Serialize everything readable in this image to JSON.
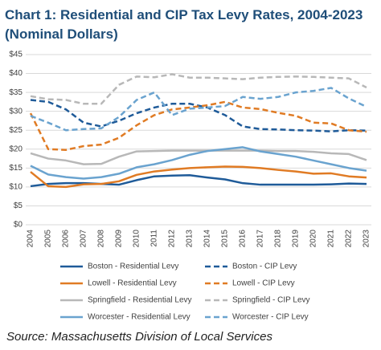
{
  "chart_data": {
    "type": "line",
    "title": "Chart 1: Residential and CIP Tax Levy Rates, 2004-2023",
    "subtitle": "(Nominal Dollars)",
    "source": "Source: Massachusetts Division of Local Services",
    "categories": [
      "2004",
      "2005",
      "2006",
      "2007",
      "2008",
      "2009",
      "2010",
      "2011",
      "2012",
      "2013",
      "2014",
      "2015",
      "2016",
      "2017",
      "2018",
      "2019",
      "2020",
      "2021",
      "2022",
      "2023"
    ],
    "ylim": [
      0,
      45
    ],
    "yticks": [
      {
        "value": 0,
        "label": "$0"
      },
      {
        "value": 5,
        "label": "$5"
      },
      {
        "value": 10,
        "label": "$10"
      },
      {
        "value": 15,
        "label": "$15"
      },
      {
        "value": 20,
        "label": "$20"
      },
      {
        "value": 25,
        "label": "$25"
      },
      {
        "value": 30,
        "label": "$30"
      },
      {
        "value": 35,
        "label": "$35"
      },
      {
        "value": 40,
        "label": "$40"
      },
      {
        "value": 45,
        "label": "$45"
      }
    ],
    "grid": true,
    "legend": "bottom",
    "series": [
      {
        "name": "Boston - Residential Levy",
        "color": "#1f5b99",
        "style": "solid",
        "values": [
          10.2,
          10.8,
          11,
          11,
          10.8,
          10.6,
          11.8,
          12.8,
          13,
          13.1,
          12.5,
          12,
          11,
          10.6,
          10.6,
          10.6,
          10.6,
          10.7,
          10.9,
          10.8
        ]
      },
      {
        "name": "Boston - CIP Levy",
        "color": "#1f5b99",
        "style": "dashed",
        "values": [
          33,
          32.5,
          30.5,
          27,
          26,
          27.5,
          29.5,
          31,
          32,
          32,
          31,
          29,
          26,
          25.3,
          25.2,
          25,
          24.9,
          24.7,
          25,
          24.9
        ]
      },
      {
        "name": "Lowell - Residential Levy",
        "color": "#e07b24",
        "style": "solid",
        "values": [
          14,
          10.2,
          10,
          10.7,
          10.8,
          11.5,
          13.2,
          14.1,
          14.6,
          15,
          15.2,
          15.4,
          15.3,
          15,
          14.5,
          14.1,
          13.5,
          13.6,
          12.8,
          12.5
        ]
      },
      {
        "name": "Lowell - CIP Levy",
        "color": "#e07b24",
        "style": "dashed",
        "values": [
          29.5,
          20,
          19.8,
          20.8,
          21.2,
          23,
          26.3,
          29,
          30.5,
          31,
          31.6,
          32.5,
          31,
          30.6,
          29.6,
          28.8,
          27,
          26.8,
          25,
          24.6
        ]
      },
      {
        "name": "Springfield - Residential Levy",
        "color": "#b8b8b8",
        "style": "solid",
        "values": [
          18.9,
          17.5,
          17,
          16,
          16.1,
          18,
          19.4,
          19.5,
          19.6,
          19.6,
          19.6,
          19.6,
          19.6,
          19.6,
          19.5,
          19.5,
          19.3,
          18.9,
          18.7,
          17.1
        ]
      },
      {
        "name": "Springfield - CIP Levy",
        "color": "#b8b8b8",
        "style": "dashed",
        "values": [
          34,
          33.2,
          33,
          32,
          32,
          37,
          39.2,
          39,
          39.8,
          38.9,
          38.9,
          38.7,
          38.5,
          38.9,
          39.1,
          39.2,
          39.1,
          38.9,
          38.7,
          36.3
        ]
      },
      {
        "name": "Worcester - Residential Levy",
        "color": "#6aa3cf",
        "style": "solid",
        "values": [
          15.6,
          13.3,
          12.6,
          12.2,
          12.6,
          13.5,
          15.2,
          16,
          17.1,
          18.5,
          19.5,
          20,
          20.5,
          19.4,
          18.7,
          18,
          17,
          16,
          15,
          14.3
        ]
      },
      {
        "name": "Worcester - CIP Levy",
        "color": "#6aa3cf",
        "style": "dashed",
        "values": [
          28.8,
          27,
          25,
          25.3,
          25.5,
          28.5,
          33,
          35,
          29,
          30.7,
          31,
          31.4,
          33.8,
          33.3,
          33.8,
          35,
          35.4,
          36.2,
          33.4,
          31.2
        ]
      }
    ]
  }
}
